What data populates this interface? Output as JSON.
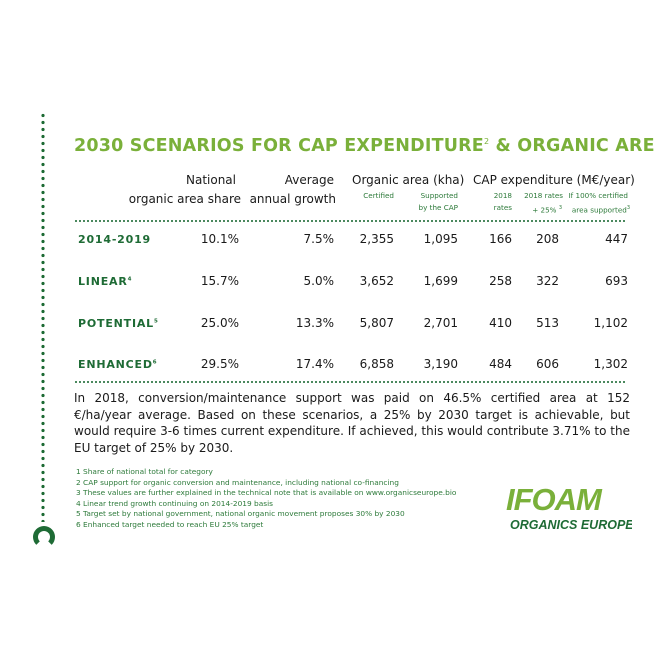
{
  "title": {
    "main": "2030 SCENARIOS FOR CAP EXPENDITURE",
    "sup": "2",
    "rest": " & ORGANIC AREA"
  },
  "headers": {
    "national_1": "National",
    "national_2": "organic area share",
    "growth_1": "Average",
    "growth_2": "annual growth",
    "organic_area": "Organic area (kha)",
    "certified": "Certified",
    "supported_1": "Supported",
    "supported_2": "by the CAP",
    "cap_exp": "CAP expenditure (M€/year)",
    "rates2018_1": "2018",
    "rates2018_2": "rates",
    "rates25_1": "2018 rates",
    "rates25_2": "+ 25%",
    "rates25_sup": "3",
    "full_1": "If 100% certified",
    "full_2": "area supported",
    "full_sup": "3"
  },
  "rows": [
    {
      "label": "2014-2019",
      "sup": "",
      "share": "10.1%",
      "growth": "7.5%",
      "certified": "2,355",
      "supported": "1,095",
      "r2018": "166",
      "r25": "208",
      "full": "447"
    },
    {
      "label": "LINEAR",
      "sup": "4",
      "share": "15.7%",
      "growth": "5.0%",
      "certified": "3,652",
      "supported": "1,699",
      "r2018": "258",
      "r25": "322",
      "full": "693"
    },
    {
      "label": "POTENTIAL",
      "sup": "5",
      "share": "25.0%",
      "growth": "13.3%",
      "certified": "5,807",
      "supported": "2,701",
      "r2018": "410",
      "r25": "513",
      "full": "1,102"
    },
    {
      "label": "ENHANCED",
      "sup": "6",
      "share": "29.5%",
      "growth": "17.4%",
      "certified": "6,858",
      "supported": "3,190",
      "r2018": "484",
      "r25": "606",
      "full": "1,302"
    }
  ],
  "paragraph": "In 2018, conversion/maintenance support was paid on 46.5% certified area at 152 €/ha/year average. Based on these scenarios, a 25% by 2030 target is achievable, but would require 3-6 times current expenditure. If achieved, this would contribute 3.71% to the EU target of 25% by 2030.",
  "notes": [
    "1 Share of national total for category",
    "2 CAP support for organic conversion and maintenance, including national co-financing",
    "3 These values are further explained in the technical note that is available on www.organicseurope.bio",
    "4 Linear trend growth continuing on 2014-2019 basis",
    "5 Target set by national government, national organic movement proposes 30% by 2030",
    "6 Enhanced target needed to reach EU 25% target"
  ],
  "logo": {
    "top": "IFOAM",
    "bottom": "ORGANICS EUROPE"
  },
  "colors": {
    "green_dark": "#1e6b35",
    "green_light": "#7ab03a"
  }
}
